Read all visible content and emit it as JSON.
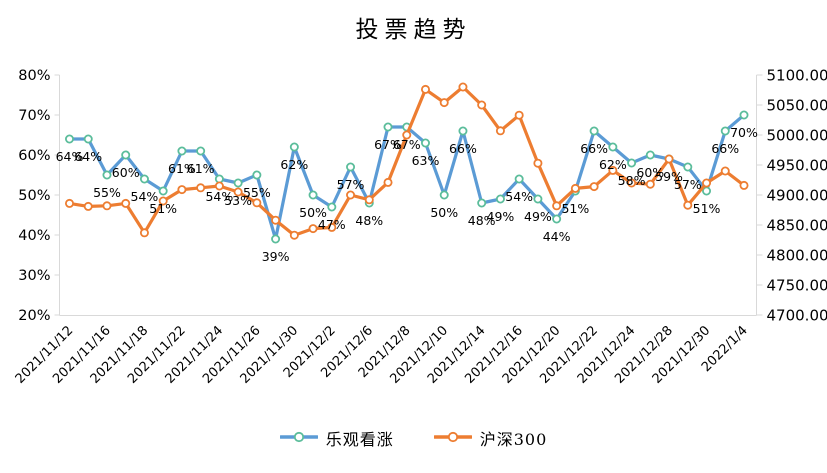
{
  "title": "投票趋势",
  "chart_data": {
    "type": "line",
    "title": "投票趋势",
    "x_tick_labels": [
      "2021/11/12",
      "2021/11/16",
      "2021/11/18",
      "2021/11/22",
      "2021/11/24",
      "2021/11/26",
      "2021/11/30",
      "2021/12/2",
      "2021/12/6",
      "2021/12/8",
      "2021/12/10",
      "2021/12/14",
      "2021/12/16",
      "2021/12/20",
      "2021/12/22",
      "2021/12/24",
      "2021/12/28",
      "2021/12/30",
      "2022/1/4"
    ],
    "x_tick_every_nth_point": 2,
    "points_count": 37,
    "left_axis": {
      "ticks": [
        "80%",
        "70%",
        "60%",
        "50%",
        "40%",
        "30%",
        "20%"
      ],
      "min": 20,
      "max": 80,
      "unit": "%"
    },
    "right_axis": {
      "ticks": [
        "5100.00",
        "5050.00",
        "5000.00",
        "4950.00",
        "4900.00",
        "4850.00",
        "4800.00",
        "4750.00",
        "4700.00"
      ],
      "min": 4700,
      "max": 5100
    },
    "grid": "off",
    "legend_position": "bottom",
    "colors": {
      "axis_line": "#D9D9D9",
      "text": "#000000"
    },
    "series": [
      {
        "name": "乐观看涨",
        "axis": "left",
        "line_color": "#5B9BD5",
        "marker_color": "#5BBD9B",
        "marker_fill": "#ffffff",
        "values": [
          64,
          64,
          55,
          60,
          54,
          51,
          61,
          61,
          54,
          53,
          55,
          39,
          62,
          50,
          47,
          57,
          48,
          67,
          67,
          63,
          50,
          66,
          48,
          49,
          54,
          49,
          44,
          51,
          66,
          62,
          58,
          60,
          59,
          57,
          51,
          66,
          70
        ],
        "data_labels": [
          "64%",
          "64%",
          "55%",
          "60%",
          "54%",
          "51%",
          "61%",
          "61%",
          "54%",
          "53%",
          "55%",
          "39%",
          "62%",
          "50%",
          "47%",
          "57%",
          "48%",
          "67%",
          "67%",
          "63%",
          "50%",
          "66%",
          "48%",
          "49%",
          "54%",
          "49%",
          "44%",
          "51%",
          "66%",
          "62%",
          "58%",
          "60%",
          "59%",
          "57%",
          "51%",
          "66%",
          "70%"
        ]
      },
      {
        "name": "沪深300",
        "axis": "right",
        "line_color": "#ED7D31",
        "marker_color": "#ED7D31",
        "marker_fill": "#ffffff",
        "values": [
          4886,
          4881,
          4882,
          4886,
          4837,
          4890,
          4909,
          4912,
          4915,
          4905,
          4887,
          4858,
          4833,
          4844,
          4846,
          4900,
          4892,
          4921,
          5000,
          5076,
          5054,
          5080,
          5050,
          5007,
          5033,
          4953,
          4882,
          4911,
          4914,
          4941,
          4920,
          4918,
          4960,
          4883,
          4920,
          4940,
          4916
        ]
      }
    ]
  }
}
